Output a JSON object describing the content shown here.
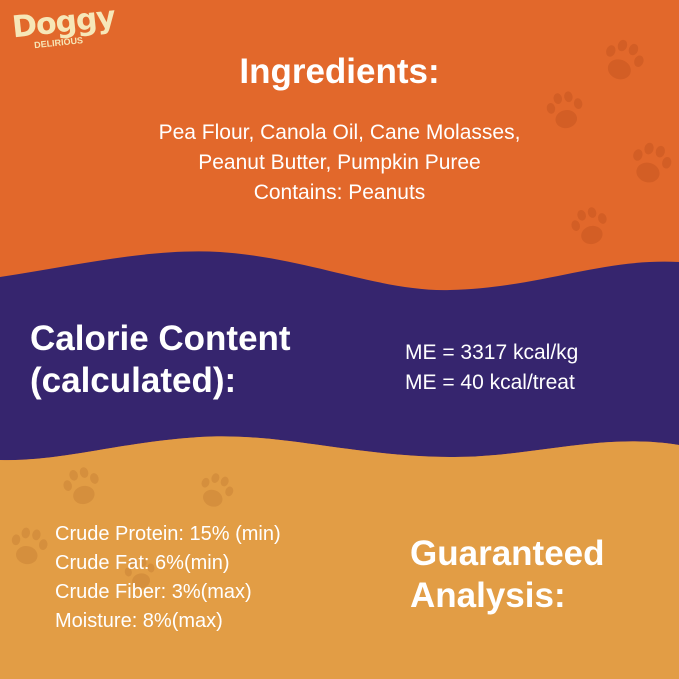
{
  "brand": {
    "logo_text": "Doggy",
    "logo_subtext": "DELIRIOUS"
  },
  "colors": {
    "top": "#E2682B",
    "middle": "#36256E",
    "bottom": "#E29D45",
    "paw": "#D35E25",
    "paw_bottom": "#D58F3D"
  },
  "ingredients": {
    "title": "Ingredients:",
    "lines": [
      "Pea Flour, Canola Oil, Cane Molasses,",
      "Peanut Butter, Pumpkin Puree",
      "Contains: Peanuts"
    ]
  },
  "calorie": {
    "title_line1": "Calorie Content",
    "title_line2": "(calculated):",
    "values": [
      "ME = 3317 kcal/kg",
      "ME = 40 kcal/treat"
    ]
  },
  "analysis": {
    "title_line1": "Guaranteed",
    "title_line2": "Analysis:",
    "items": [
      "Crude Protein: 15% (min)",
      "Crude Fat: 6%(min)",
      "Crude Fiber: 3%(max)",
      "Moisture: 8%(max)"
    ]
  },
  "decorations": {
    "icon": "paw-print-icon"
  }
}
